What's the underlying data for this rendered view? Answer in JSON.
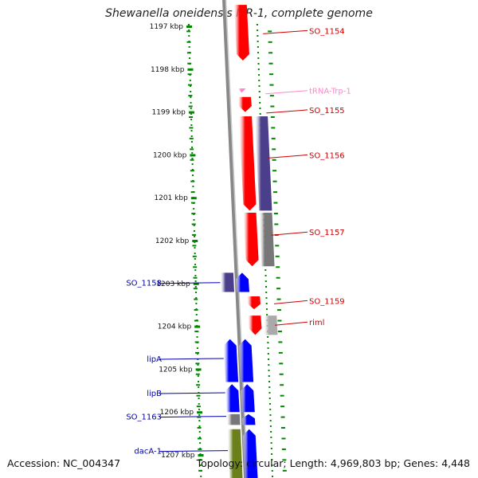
{
  "title": "Shewanella oneidensis MR-1, complete genome",
  "accession": "Accession: NC_004347",
  "topology": "Topology: circular; Length: 4,969,803 bp; Genes: 4,448",
  "ruler": {
    "ticks": [
      "1197 kbp",
      "1198 kbp",
      "1199 kbp",
      "1200 kbp",
      "1201 kbp",
      "1202 kbp",
      "1203 kbp",
      "1204 kbp",
      "1205 kbp",
      "1206 kbp",
      "1207 kbp"
    ]
  },
  "colors": {
    "forward_gene": "#0000ff",
    "reverse_gene": "#ff0000",
    "forward_cds": "#4b3f8c",
    "reverse_cds": "#4b3f8c",
    "pseudo": "#777777",
    "rrna": "#6b7f1a",
    "trna": "#ff88cc",
    "axis": "#888888",
    "tick": "#008800",
    "forward_label": "#0000aa",
    "reverse_label": "#cc0000",
    "trna_label": "#ff88cc"
  },
  "labels": {
    "forward": [
      {
        "name": "SO_1158",
        "kbp": 1202.98
      },
      {
        "name": "lipA",
        "kbp": 1204.75
      },
      {
        "name": "lipB",
        "kbp": 1205.55
      },
      {
        "name": "SO_1163",
        "kbp": 1206.1
      },
      {
        "name": "dacA-1",
        "kbp": 1206.9
      }
    ],
    "reverse": [
      {
        "name": "SO_1154",
        "kbp": 1197.1
      },
      {
        "name": "tRNA-Trp-1",
        "kbp": 1198.5,
        "type": "trna"
      },
      {
        "name": "SO_1155",
        "kbp": 1198.95
      },
      {
        "name": "SO_1156",
        "kbp": 1200.0
      },
      {
        "name": "SO_1157",
        "kbp": 1201.8
      },
      {
        "name": "SO_1159",
        "kbp": 1203.4
      },
      {
        "name": "riml",
        "kbp": 1203.9
      }
    ]
  },
  "features": [
    {
      "id": "SO_1154",
      "track": "rev_gene",
      "start": 1196.5,
      "end": 1197.8
    },
    {
      "id": "tRNA-Trp-1",
      "track": "rev_gene",
      "start": 1198.45,
      "end": 1198.55,
      "type": "trna"
    },
    {
      "id": "SO_1155",
      "track": "rev_gene",
      "start": 1198.65,
      "end": 1199.0
    },
    {
      "id": "SO_1156",
      "track": "rev_gene",
      "start": 1199.1,
      "end": 1201.3
    },
    {
      "id": "SO_1156_cds",
      "track": "rev_cds",
      "start": 1199.1,
      "end": 1201.3,
      "type": "cds"
    },
    {
      "id": "SO_1157",
      "track": "rev_gene",
      "start": 1201.35,
      "end": 1202.6
    },
    {
      "id": "SO_1157_cds",
      "track": "rev_cds",
      "start": 1201.35,
      "end": 1202.6,
      "type": "pseudo"
    },
    {
      "id": "SO_1158",
      "track": "fwd_gene",
      "start": 1202.75,
      "end": 1203.2
    },
    {
      "id": "SO_1158_cds",
      "track": "fwd_cds",
      "start": 1202.75,
      "end": 1203.2,
      "type": "cds"
    },
    {
      "id": "SO_1159",
      "track": "rev_gene",
      "start": 1203.3,
      "end": 1203.6
    },
    {
      "id": "riml",
      "track": "rev_gene",
      "start": 1203.75,
      "end": 1204.2
    },
    {
      "id": "riml_cds",
      "track": "rev_cds",
      "start": 1203.75,
      "end": 1204.2,
      "type": "pale"
    },
    {
      "id": "lipA",
      "track": "fwd_gene",
      "start": 1204.3,
      "end": 1205.3
    },
    {
      "id": "lipA_cds",
      "track": "fwd_cds",
      "start": 1204.3,
      "end": 1205.3
    },
    {
      "id": "lipB",
      "track": "fwd_gene",
      "start": 1205.35,
      "end": 1206.0
    },
    {
      "id": "lipB_cds",
      "track": "fwd_cds",
      "start": 1205.35,
      "end": 1206.0
    },
    {
      "id": "SO_1163",
      "track": "fwd_gene",
      "start": 1206.05,
      "end": 1206.3
    },
    {
      "id": "SO_1163_cds",
      "track": "fwd_cds",
      "start": 1206.05,
      "end": 1206.3,
      "type": "pseudo"
    },
    {
      "id": "dacA-1",
      "track": "fwd_gene",
      "start": 1206.4,
      "end": 1207.6
    },
    {
      "id": "dacA-1_cds",
      "track": "fwd_cds",
      "start": 1206.4,
      "end": 1207.6,
      "type": "rrna"
    }
  ]
}
